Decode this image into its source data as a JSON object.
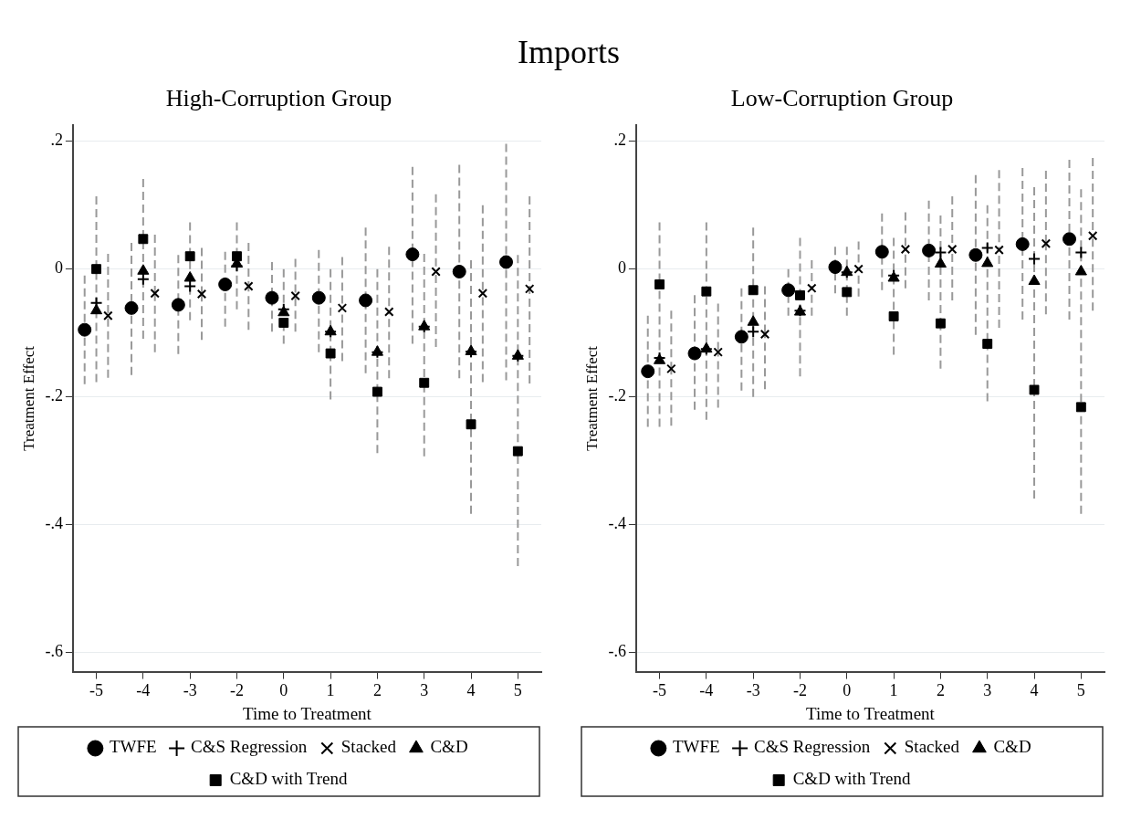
{
  "chart_data": [
    {
      "type": "scatter",
      "title": "Imports",
      "subtitle": "High-Corruption Group",
      "xlabel": "Time to Treatment",
      "ylabel": "Treatment Effect",
      "categories": [
        "-5",
        "-4",
        "-3",
        "-2",
        "0",
        "1",
        "2",
        "3",
        "4",
        "5"
      ],
      "ylim": [
        -0.63,
        0.225
      ],
      "yticks": [
        {
          "value": 0.2,
          "label": ".2"
        },
        {
          "value": 0,
          "label": "0"
        },
        {
          "value": -0.2,
          "label": "-.2"
        },
        {
          "value": -0.4,
          "label": "-.4"
        },
        {
          "value": -0.6,
          "label": "-.6"
        }
      ],
      "grid": "y",
      "legend": "bottom",
      "series": [
        {
          "name": "TWFE",
          "color": "#000000",
          "marker": "circle",
          "values": [
            -0.095,
            -0.061,
            -0.056,
            -0.024,
            -0.045,
            -0.045,
            -0.049,
            0.023,
            -0.004,
            0.011
          ],
          "errors": [
            [
              -0.18,
              -0.01
            ],
            [
              -0.166,
              0.041
            ],
            [
              -0.133,
              0.022
            ],
            [
              -0.09,
              0.027
            ],
            [
              -0.098,
              0.011
            ],
            [
              -0.13,
              0.03
            ],
            [
              -0.163,
              0.065
            ],
            [
              -0.117,
              0.16
            ],
            [
              -0.171,
              0.163
            ],
            [
              -0.174,
              0.196
            ]
          ]
        },
        {
          "name": "C&S Regression",
          "color": "#000000",
          "marker": "cross",
          "values": [
            -0.053,
            -0.016,
            -0.027,
            0.005,
            -0.063,
            -0.098,
            -0.13,
            -0.09,
            -0.129,
            -0.136
          ]
        },
        {
          "name": "Stacked",
          "color": "#000000",
          "marker": "x",
          "values": [
            -0.073,
            -0.038,
            -0.039,
            -0.027,
            -0.042,
            -0.061,
            -0.067,
            -0.004,
            -0.038,
            -0.031
          ],
          "errors": [
            [
              -0.17,
              0.024
            ],
            [
              -0.13,
              0.054
            ],
            [
              -0.111,
              0.033
            ],
            [
              -0.095,
              0.041
            ],
            [
              -0.098,
              0.016
            ],
            [
              -0.144,
              0.019
            ],
            [
              -0.171,
              0.035
            ],
            [
              -0.122,
              0.117
            ],
            [
              -0.177,
              0.1
            ],
            [
              -0.179,
              0.114
            ]
          ]
        },
        {
          "name": "C&D",
          "color": "#000000",
          "marker": "triangle",
          "values": [
            -0.065,
            -0.003,
            -0.014,
            0.008,
            -0.068,
            -0.098,
            -0.13,
            -0.09,
            -0.129,
            -0.136
          ]
        },
        {
          "name": "C&D with Trend",
          "color": "#000000",
          "marker": "square",
          "values": [
            0.0,
            0.047,
            0.02,
            0.02,
            -0.084,
            -0.132,
            -0.192,
            -0.178,
            -0.243,
            -0.285
          ],
          "errors": [
            [
              -0.177,
              0.114
            ],
            [
              -0.109,
              0.141
            ],
            [
              -0.08,
              0.073
            ],
            [
              -0.063,
              0.073
            ],
            [
              -0.117,
              0.0
            ],
            [
              -0.204,
              0.0
            ],
            [
              -0.288,
              0.0
            ],
            [
              -0.293,
              0.024
            ],
            [
              -0.383,
              0.014
            ],
            [
              -0.465,
              0.022
            ]
          ]
        }
      ]
    },
    {
      "type": "scatter",
      "subtitle": "Low-Corruption Group",
      "xlabel": "Time to Treatment",
      "ylabel": "Treatment Effect",
      "categories": [
        "-5",
        "-4",
        "-3",
        "-2",
        "0",
        "1",
        "2",
        "3",
        "4",
        "5"
      ],
      "ylim": [
        -0.63,
        0.225
      ],
      "yticks": [
        {
          "value": 0.2,
          "label": ".2"
        },
        {
          "value": 0,
          "label": "0"
        },
        {
          "value": -0.2,
          "label": "-.2"
        },
        {
          "value": -0.4,
          "label": "-.4"
        },
        {
          "value": -0.6,
          "label": "-.6"
        }
      ],
      "grid": "y",
      "legend": "bottom",
      "series": [
        {
          "name": "TWFE",
          "color": "#000000",
          "marker": "circle",
          "values": [
            -0.16,
            -0.132,
            -0.106,
            -0.033,
            0.003,
            0.027,
            0.029,
            0.022,
            0.039,
            0.047
          ],
          "errors": [
            [
              -0.247,
              -0.073
            ],
            [
              -0.22,
              -0.041
            ],
            [
              -0.19,
              -0.03
            ],
            [
              -0.073,
              0.0
            ],
            [
              -0.038,
              0.035
            ],
            [
              -0.033,
              0.087
            ],
            [
              -0.049,
              0.107
            ],
            [
              -0.103,
              0.147
            ],
            [
              -0.079,
              0.158
            ],
            [
              -0.079,
              0.171
            ]
          ]
        },
        {
          "name": "C&S Regression",
          "color": "#000000",
          "marker": "cross",
          "values": [
            -0.139,
            -0.125,
            -0.098,
            -0.065,
            -0.005,
            -0.01,
            0.026,
            0.033,
            0.016,
            0.026
          ]
        },
        {
          "name": "Stacked",
          "color": "#000000",
          "marker": "x",
          "values": [
            -0.156,
            -0.13,
            -0.102,
            -0.03,
            0.0,
            0.031,
            0.031,
            0.03,
            0.04,
            0.052
          ],
          "errors": [
            [
              -0.245,
              -0.065
            ],
            [
              -0.217,
              -0.054
            ],
            [
              -0.188,
              -0.027
            ],
            [
              -0.073,
              0.014
            ],
            [
              -0.043,
              0.043
            ],
            [
              -0.03,
              0.089
            ],
            [
              -0.049,
              0.114
            ],
            [
              -0.092,
              0.155
            ],
            [
              -0.071,
              0.154
            ],
            [
              -0.065,
              0.174
            ]
          ]
        },
        {
          "name": "C&D",
          "color": "#000000",
          "marker": "triangle",
          "values": [
            -0.143,
            -0.125,
            -0.083,
            -0.067,
            -0.005,
            -0.014,
            0.008,
            0.009,
            -0.019,
            -0.004
          ]
        },
        {
          "name": "C&D with Trend",
          "color": "#000000",
          "marker": "square",
          "values": [
            -0.024,
            -0.035,
            -0.033,
            -0.041,
            -0.036,
            -0.074,
            -0.085,
            -0.117,
            -0.189,
            -0.216
          ],
          "errors": [
            [
              -0.247,
              0.073
            ],
            [
              -0.236,
              0.073
            ],
            [
              -0.2,
              0.065
            ],
            [
              -0.168,
              0.049
            ],
            [
              -0.073,
              0.035
            ],
            [
              -0.134,
              0.049
            ],
            [
              -0.156,
              0.084
            ],
            [
              -0.207,
              0.1
            ],
            [
              -0.359,
              0.128
            ],
            [
              -0.383,
              0.125
            ]
          ]
        }
      ]
    }
  ]
}
